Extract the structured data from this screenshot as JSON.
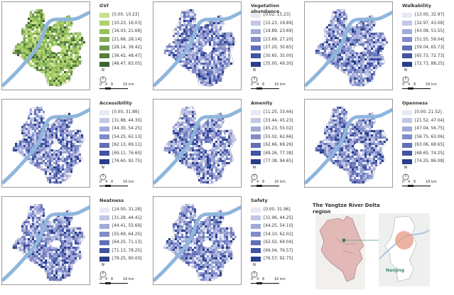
{
  "scale": {
    "north": "N",
    "ticks": [
      "0",
      "4",
      "8",
      "16 km"
    ]
  },
  "panels": [
    {
      "title": "GVI",
      "italic": true,
      "palette": [
        "#c9e08e",
        "#add06c",
        "#96c15c",
        "#88ae5e",
        "#6d9a4f",
        "#557d3d",
        "#3e6331"
      ],
      "classes": [
        "[0.00, 10.23]",
        "[10.23, 16.03]",
        "[16.03, 21.68]",
        "[21.68, 28.14]",
        "[28.14, 36.42]",
        "[36.42, 48.47]",
        "[48.47, 83.05]"
      ]
    },
    {
      "title": "Vegetation abundance",
      "palette": [
        "#e7e9f5",
        "#c2c7e6",
        "#a2aad8",
        "#828cc8",
        "#6170b6",
        "#4153a1",
        "#293e8b"
      ],
      "classes": [
        "[0.02, 15.23]",
        "[15.23, 19.89]",
        "[19.89, 23.69]",
        "[23.69, 27.20]",
        "[27.20, 30.65]",
        "[30.65, 35.00]",
        "[35.00, 49.30]"
      ]
    },
    {
      "title": "Walkability",
      "palette": [
        "#e7e9f5",
        "#c2c7e6",
        "#a2aad8",
        "#828cc8",
        "#6170b6",
        "#4153a1",
        "#293e8b"
      ],
      "classes": [
        "[13.00, 32.97]",
        "[32.97, 43.08]",
        "[43.08, 51.55]",
        "[51.55, 59.04]",
        "[59.04, 65.73]",
        "[65.73, 72.73]",
        "[72.73, 88.25]"
      ]
    },
    {
      "title": "Accessibility",
      "palette": [
        "#e7e9f5",
        "#c2c7e6",
        "#a2aad8",
        "#828cc8",
        "#6170b6",
        "#4153a1",
        "#293e8b"
      ],
      "classes": [
        "[0.00, 31.88]",
        "[31.88, 44.30]",
        "[44.30, 54.25]",
        "[54.25, 62.13]",
        "[62.13, 69.11]",
        "[69.11, 76.60]",
        "[76.60, 92.75]"
      ]
    },
    {
      "title": "Amenity",
      "palette": [
        "#e7e9f5",
        "#c2c7e6",
        "#a2aad8",
        "#828cc8",
        "#6170b6",
        "#4153a1",
        "#293e8b"
      ],
      "classes": [
        "[11.25, 33.44]",
        "[33.44, 45.23]",
        "[45.23, 55.02]",
        "[55.02, 62.66]",
        "[62.66, 69.26]",
        "[69.26, 77.38]",
        "[77.38, 94.65]"
      ]
    },
    {
      "title": "Openness",
      "palette": [
        "#e7e9f5",
        "#c2c7e6",
        "#a2aad8",
        "#828cc8",
        "#6170b6",
        "#4153a1",
        "#293e8b"
      ],
      "classes": [
        "[0.00, 21.52]",
        "[21.52, 47.04]",
        "[47.04, 56.75]",
        "[56.75, 63.06]",
        "[63.06, 68.65]",
        "[68.65, 74.25]",
        "[74.25, 86.08]"
      ]
    },
    {
      "title": "Neatness",
      "palette": [
        "#e7e9f5",
        "#c2c7e6",
        "#a2aad8",
        "#828cc8",
        "#6170b6",
        "#4153a1",
        "#293e8b"
      ],
      "classes": [
        "[14.00, 31.28]",
        "[31.28, 44.41]",
        "[44.41, 55.69]",
        "[55.69, 64.25]",
        "[64.25, 71.13]",
        "[71.13, 78.25]",
        "[78.25, 90.00]"
      ]
    },
    {
      "title": "Safety",
      "palette": [
        "#e7e9f5",
        "#c2c7e6",
        "#a2aad8",
        "#828cc8",
        "#6170b6",
        "#4153a1",
        "#293e8b"
      ],
      "classes": [
        "[0.00, 31.96]",
        "[31.96, 44.25]",
        "[44.25, 54.10]",
        "[54.10, 62.02]",
        "[62.02, 69.04]",
        "[69.04, 76.57]",
        "[76.57, 92.75]"
      ]
    }
  ],
  "inset": {
    "title": "The Yangtze  River Delta region",
    "city_label": "Nanjing",
    "colors": {
      "region": "#e2b9b7",
      "highlight": "#e59a85",
      "river": "#8fb6dc",
      "marker": "#2e7d5e"
    }
  }
}
